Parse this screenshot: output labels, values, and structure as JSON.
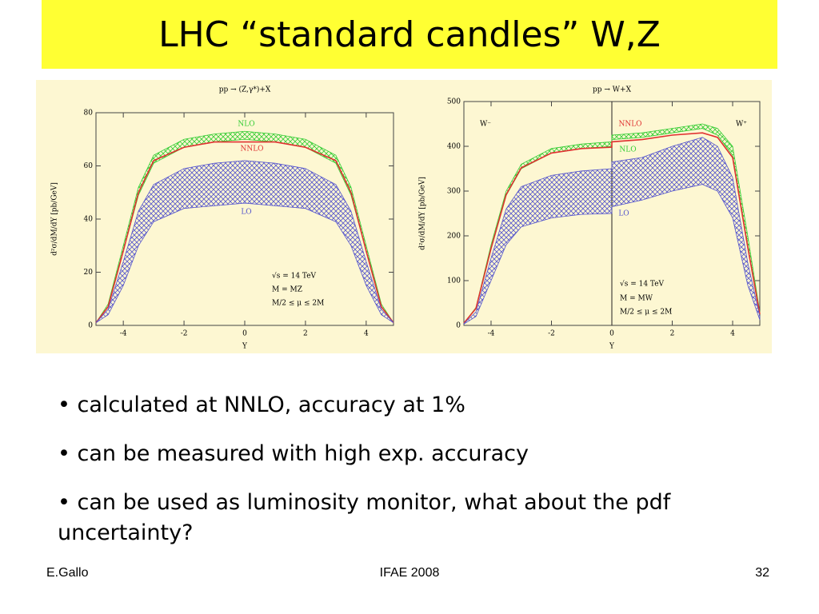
{
  "title": "LHC “standard candles” W,Z",
  "chart_data": [
    {
      "type": "band",
      "title": "pp → (Z,γ*)+X",
      "x_label": "Y",
      "y_label": "d²σ/dM/dY [pb/GeV]",
      "annotations": [
        "√s = 14 TeV",
        "M = MZ",
        "M/2 ≤ μ ≤ 2M"
      ],
      "xlim": [
        -4.9,
        4.9
      ],
      "xticks": [
        -4,
        -2,
        0,
        2,
        4
      ],
      "ylim": [
        0,
        80
      ],
      "yticks": [
        0,
        20,
        40,
        60,
        80
      ],
      "x": [
        -4.9,
        -4.5,
        -4,
        -3.5,
        -3,
        -2,
        -1,
        0,
        1,
        2,
        3,
        3.5,
        4,
        4.5,
        4.9
      ],
      "series": [
        {
          "name": "NLO",
          "color": "#33cc33",
          "high": [
            1,
            8,
            30,
            52,
            64,
            70,
            72,
            73,
            72,
            70,
            64,
            52,
            30,
            8,
            1
          ],
          "low": [
            1,
            7,
            28,
            49,
            61,
            67,
            69,
            70,
            69,
            67,
            61,
            49,
            28,
            7,
            1
          ]
        },
        {
          "name": "NNLO",
          "color": "#e03030",
          "values": [
            1,
            7,
            28,
            50,
            62,
            67,
            69,
            69,
            69,
            67,
            62,
            50,
            28,
            7,
            1
          ]
        },
        {
          "name": "LO",
          "color": "#5555cc",
          "high": [
            1,
            6,
            24,
            43,
            53,
            59,
            61,
            62,
            61,
            59,
            53,
            43,
            24,
            6,
            1
          ],
          "low": [
            1,
            4,
            15,
            30,
            39,
            44,
            45,
            46,
            45,
            44,
            39,
            30,
            15,
            4,
            1
          ]
        }
      ]
    },
    {
      "type": "band",
      "title": "pp → W+X",
      "x_label": "Y",
      "y_label": "d²σ/dM/dY [pb/GeV]",
      "annotations": [
        "√s = 14 TeV",
        "M = MW",
        "M/2 ≤ μ ≤ 2M",
        "W⁻",
        "W⁺"
      ],
      "vline": 0,
      "xlim": [
        -4.9,
        4.9
      ],
      "xticks": [
        -4,
        -2,
        0,
        2,
        4
      ],
      "ylim": [
        0,
        500
      ],
      "yticks": [
        0,
        100,
        200,
        300,
        400,
        500
      ],
      "x": [
        -4.9,
        -4.5,
        -4,
        -3.5,
        -3,
        -2,
        -1,
        0,
        0,
        1,
        2,
        3,
        3.5,
        4,
        4.5,
        4.9
      ],
      "series": [
        {
          "name": "NLO",
          "color": "#33cc33",
          "high": [
            5,
            40,
            180,
            300,
            360,
            395,
            405,
            410,
            425,
            430,
            440,
            450,
            440,
            400,
            200,
            30
          ],
          "low": [
            5,
            38,
            170,
            290,
            350,
            385,
            395,
            400,
            415,
            420,
            430,
            440,
            425,
            380,
            180,
            25
          ]
        },
        {
          "name": "NNLO",
          "color": "#e03030",
          "values": [
            5,
            38,
            172,
            292,
            352,
            385,
            395,
            398,
            410,
            415,
            425,
            430,
            420,
            375,
            175,
            25
          ]
        },
        {
          "name": "LO",
          "color": "#5555cc",
          "high": [
            4,
            30,
            150,
            260,
            310,
            335,
            345,
            350,
            365,
            375,
            400,
            420,
            400,
            330,
            140,
            20
          ],
          "low": [
            3,
            20,
            100,
            180,
            220,
            240,
            248,
            250,
            265,
            280,
            300,
            315,
            300,
            240,
            90,
            12
          ]
        }
      ]
    }
  ],
  "bullets": [
    "calculated at NNLO, accuracy at 1%",
    "can be measured with high exp. accuracy",
    "can be used as luminosity monitor, what about the pdf uncertainty?"
  ],
  "footer": {
    "left": "E.Gallo",
    "center": "IFAE 2008",
    "right": "32"
  }
}
